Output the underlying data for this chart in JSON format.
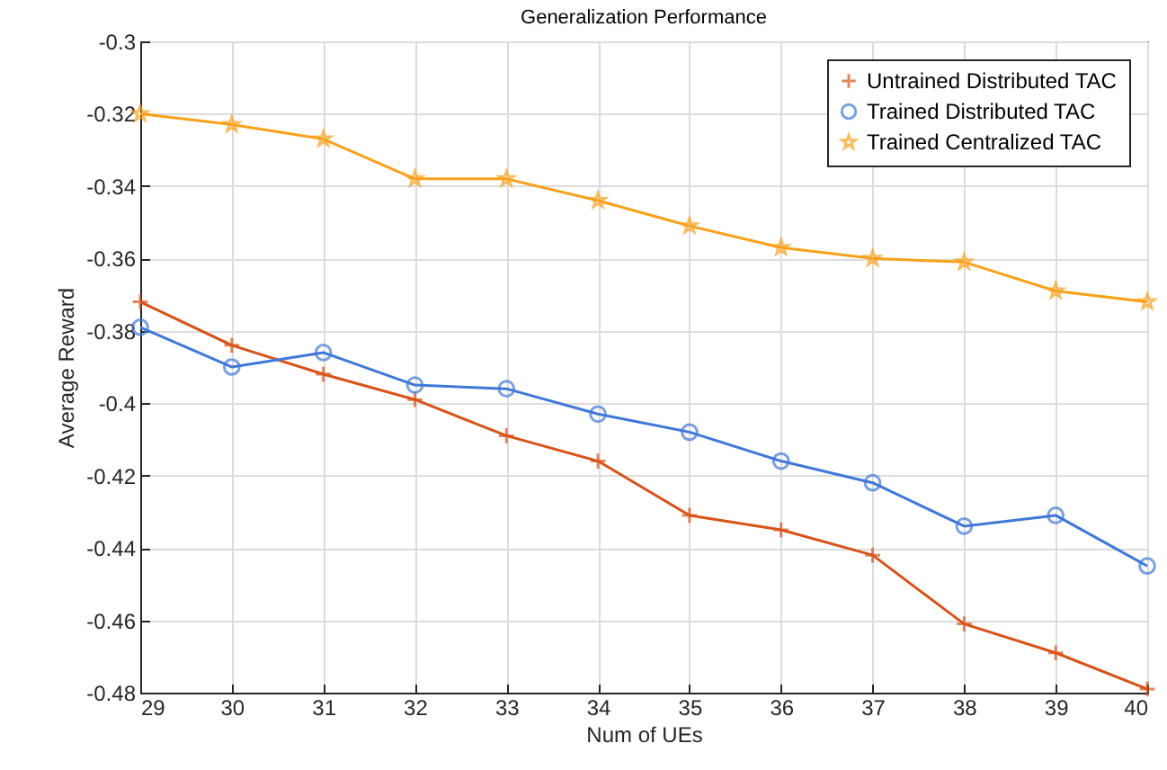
{
  "chart_data": {
    "type": "line",
    "title": "Generalization Performance",
    "xlabel": "Num of UEs",
    "ylabel": "Average Reward",
    "x": [
      29,
      30,
      31,
      32,
      33,
      34,
      35,
      36,
      37,
      38,
      39,
      40
    ],
    "series": [
      {
        "name": "Untrained Distributed TAC",
        "color": "#d95319",
        "marker": "cross",
        "values": [
          -0.372,
          -0.384,
          -0.392,
          -0.399,
          -0.409,
          -0.416,
          -0.431,
          -0.435,
          -0.442,
          -0.461,
          -0.469,
          -0.479
        ]
      },
      {
        "name": "Trained Distributed TAC",
        "color": "#3f78d8",
        "marker": "circle",
        "values": [
          -0.379,
          -0.39,
          -0.386,
          -0.395,
          -0.396,
          -0.403,
          -0.408,
          -0.416,
          -0.422,
          -0.434,
          -0.431,
          -0.445
        ]
      },
      {
        "name": "Trained Centralized TAC",
        "color": "#f9a11b",
        "marker": "star",
        "values": [
          -0.32,
          -0.323,
          -0.327,
          -0.338,
          -0.338,
          -0.344,
          -0.351,
          -0.357,
          -0.36,
          -0.361,
          -0.369,
          -0.372
        ]
      }
    ],
    "xlim": [
      29,
      40
    ],
    "xticks": [
      29,
      30,
      31,
      32,
      33,
      34,
      35,
      36,
      37,
      38,
      39,
      40
    ],
    "ylim": [
      -0.48,
      -0.3
    ],
    "yticks": [
      -0.48,
      -0.46,
      -0.44,
      -0.42,
      -0.4,
      -0.38,
      -0.36,
      -0.34,
      -0.32,
      -0.3
    ],
    "grid": true,
    "legend": "top right",
    "line_style": "solid"
  }
}
